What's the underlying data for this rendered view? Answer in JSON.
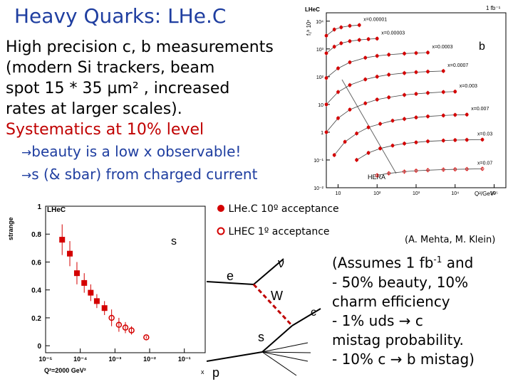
{
  "slide": {
    "title": "Heavy Quarks: LHe.C",
    "intro": [
      "High precision c, b measurements",
      "(modern Si trackers, beam",
      "spot 15 * 35 µm² , increased",
      "rates at larger scales)."
    ],
    "systematics": "Systematics at 10% level",
    "bullets": [
      "beauty is a low x observable!",
      "s (& sbar) from charged current"
    ],
    "arrow_icon": "→"
  },
  "legend": {
    "filled": "LHe.C 10º acceptance",
    "open": "LHEC 1º acceptance",
    "filled_color": "#d40000"
  },
  "credit": "(A. Mehta, M. Klein)",
  "assumptions": {
    "line1_prefix": "(Assumes 1 fb",
    "line1_sup": "-1",
    "line1_suffix": " and",
    "lines": [
      "- 50% beauty, 10%",
      "charm efficiency",
      "- 1% uds → c",
      "mistag probability.",
      "- 10% c → b mistag)"
    ]
  },
  "diagram": {
    "labels": {
      "e": "e",
      "nu": "ν",
      "W": "W",
      "s": "s",
      "c": "c",
      "p": "p"
    },
    "w_color": "#c00000"
  },
  "chart_data": [
    {
      "type": "scatter",
      "corner_label": "LHeC",
      "top_right_label": "1 fb⁻¹",
      "panel_label": "b",
      "ylabel": "f₂ᵇ 10ˣ",
      "xlabel": "Q²/GeV²",
      "hera_label": "HERA",
      "xscale": "log",
      "yscale": "log",
      "xlim": [
        5,
        200000
      ],
      "ylim": [
        0.01,
        20000
      ],
      "yticks": [
        "10⁴",
        "10³",
        "10²",
        "10",
        "1",
        "10⁻¹",
        "10⁻²"
      ],
      "xticks": [
        "10",
        "10²",
        "10³",
        "10⁴",
        "10⁵"
      ],
      "series": [
        {
          "name": "x=0.00001",
          "q2": [
            5,
            8,
            12,
            20,
            35
          ],
          "values": [
            3000,
            5000,
            6000,
            6800,
            7200
          ]
        },
        {
          "name": "x=0.00003",
          "q2": [
            5,
            8,
            12,
            20,
            35,
            60,
            100
          ],
          "values": [
            700,
            1200,
            1600,
            1900,
            2100,
            2250,
            2350
          ]
        },
        {
          "name": "x=0.0003",
          "q2": [
            5,
            10,
            20,
            50,
            100,
            200,
            500,
            1000,
            2000
          ],
          "values": [
            90,
            200,
            330,
            480,
            560,
            620,
            680,
            710,
            740
          ]
        },
        {
          "name": "x=0.0007",
          "q2": [
            5,
            10,
            20,
            50,
            100,
            200,
            500,
            1000,
            2000,
            5000
          ],
          "values": [
            10,
            28,
            50,
            80,
            100,
            118,
            135,
            145,
            152,
            160
          ]
        },
        {
          "name": "x=0.003",
          "q2": [
            5,
            10,
            20,
            50,
            100,
            200,
            500,
            1000,
            2000,
            5000,
            10000
          ],
          "values": [
            1.0,
            3.2,
            6.5,
            11,
            15,
            18,
            22,
            24,
            26,
            28,
            29
          ]
        },
        {
          "name": "x=0.007",
          "q2": [
            8,
            15,
            30,
            60,
            120,
            250,
            500,
            1000,
            2000,
            5000,
            10000,
            20000
          ],
          "values": [
            0.15,
            0.45,
            0.9,
            1.5,
            2.0,
            2.6,
            3.0,
            3.4,
            3.7,
            4.0,
            4.2,
            4.3
          ]
        },
        {
          "name": "x=0.03",
          "q2": [
            30,
            60,
            120,
            250,
            500,
            1000,
            2000,
            5000,
            10000,
            20000,
            50000
          ],
          "values": [
            0.1,
            0.18,
            0.26,
            0.33,
            0.39,
            0.43,
            0.47,
            0.5,
            0.52,
            0.53,
            0.54
          ]
        },
        {
          "name": "x=0.07",
          "q2": [
            100,
            200,
            500,
            1000,
            2000,
            5000,
            10000,
            20000,
            50000
          ],
          "values": [
            0.028,
            0.033,
            0.038,
            0.041,
            0.043,
            0.045,
            0.046,
            0.047,
            0.048
          ]
        }
      ]
    },
    {
      "type": "scatter",
      "corner_label": "LHeC",
      "series_label": "s",
      "ylabel": "strange",
      "xlabel": "x",
      "q2_label": "Q²=2000 GeV²",
      "xscale": "log",
      "xlim": [
        1e-05,
        0.4
      ],
      "ylim": [
        -0.05,
        1.0
      ],
      "xticks": [
        "10⁻⁵",
        "10⁻⁴",
        "10⁻³",
        "10⁻²",
        "10⁻¹"
      ],
      "yticks": [
        "0",
        "0.2",
        "0.4",
        "0.6",
        "0.8",
        "1"
      ],
      "series": [
        {
          "name": "LHe.C 10º acceptance",
          "x": [
            3e-05,
            5e-05,
            8e-05,
            0.00013,
            0.0002,
            0.0003,
            0.0005
          ],
          "values": [
            0.76,
            0.66,
            0.52,
            0.45,
            0.38,
            0.32,
            0.27
          ],
          "errors": [
            0.11,
            0.09,
            0.08,
            0.07,
            0.06,
            0.05,
            0.05
          ]
        },
        {
          "name": "LHEC 1º acceptance",
          "x": [
            0.0008,
            0.0013,
            0.002,
            0.003,
            0.008
          ],
          "values": [
            0.2,
            0.15,
            0.13,
            0.11,
            0.06
          ],
          "errors": [
            0.06,
            0.05,
            0.04,
            0.03,
            0.01
          ]
        }
      ]
    }
  ]
}
